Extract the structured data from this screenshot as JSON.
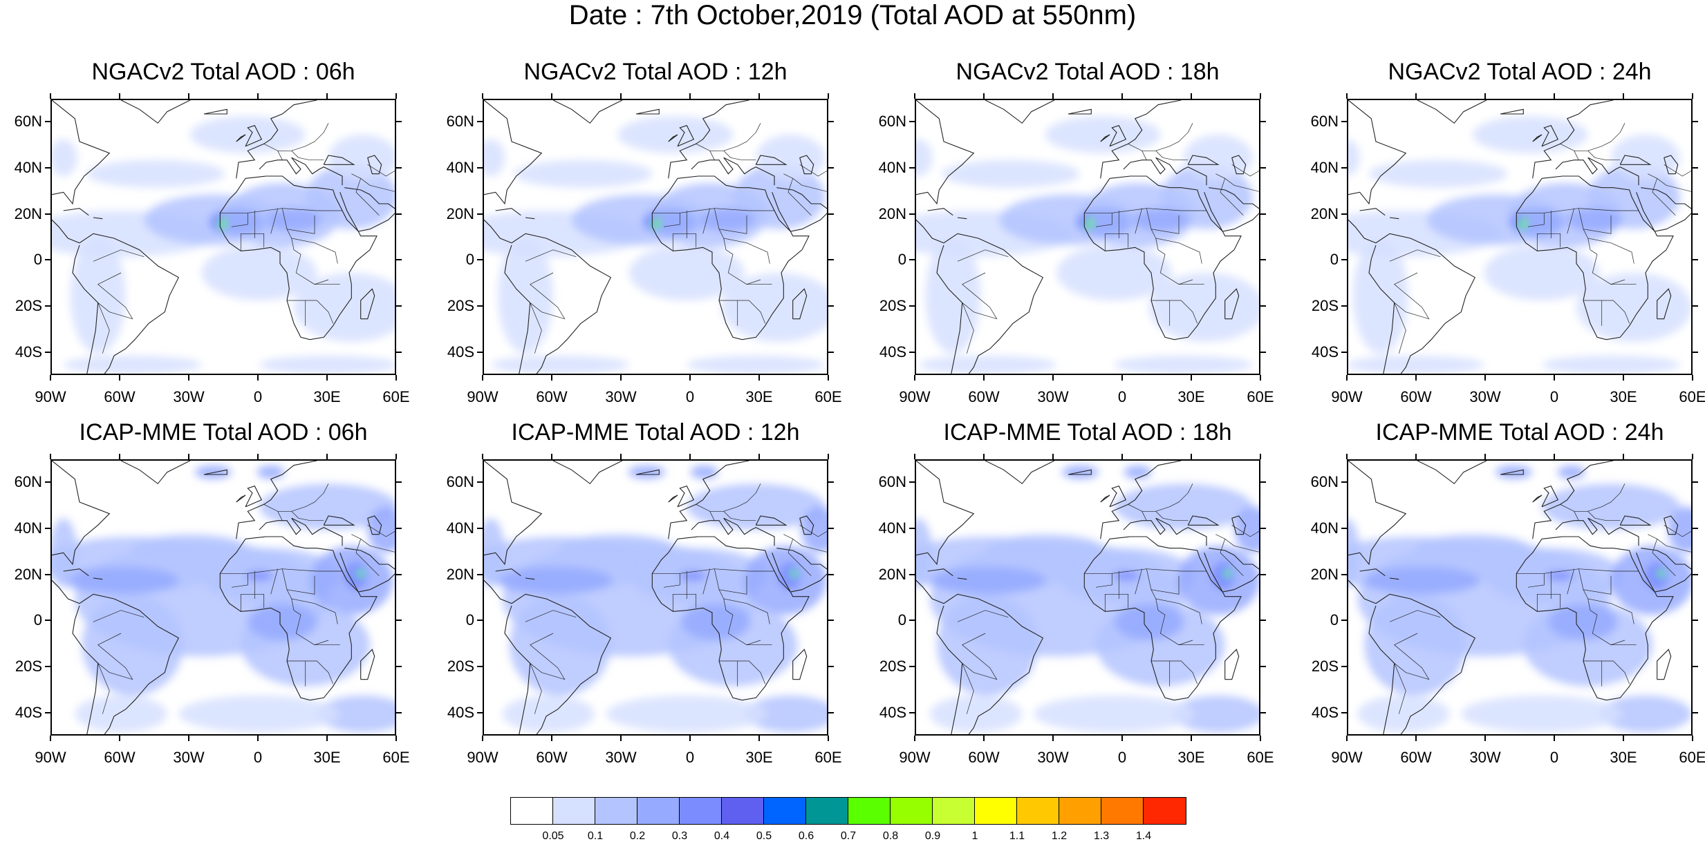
{
  "title": "Date : 7th October,2019 (Total AOD at 550nm)",
  "panels": [
    {
      "id": "ngac-06",
      "title": "NGACv2 Total AOD : 06h",
      "model": "ngac",
      "hour": 6
    },
    {
      "id": "ngac-12",
      "title": "NGACv2 Total AOD : 12h",
      "model": "ngac",
      "hour": 12
    },
    {
      "id": "ngac-18",
      "title": "NGACv2 Total AOD : 18h",
      "model": "ngac",
      "hour": 18
    },
    {
      "id": "ngac-24",
      "title": "NGACv2 Total AOD : 24h",
      "model": "ngac",
      "hour": 24
    },
    {
      "id": "icap-06",
      "title": "ICAP-MME Total AOD : 06h",
      "model": "icap",
      "hour": 6
    },
    {
      "id": "icap-12",
      "title": "ICAP-MME Total AOD : 12h",
      "model": "icap",
      "hour": 12
    },
    {
      "id": "icap-18",
      "title": "ICAP-MME Total AOD : 18h",
      "model": "icap",
      "hour": 18
    },
    {
      "id": "icap-24",
      "title": "ICAP-MME Total AOD : 24h",
      "model": "icap",
      "hour": 24
    }
  ],
  "lat_labels": [
    "60N",
    "40N",
    "20N",
    "0",
    "20S",
    "40S"
  ],
  "lon_labels": [
    "90W",
    "60W",
    "30W",
    "0",
    "30E",
    "60E"
  ],
  "colorbar": {
    "colors": [
      "#ffffff",
      "#d6e0ff",
      "#b4c4ff",
      "#96aaff",
      "#7b8cff",
      "#6060f0",
      "#0064ff",
      "#009696",
      "#5aff00",
      "#96ff00",
      "#c8ff32",
      "#ffff00",
      "#ffc800",
      "#ffa000",
      "#ff7800",
      "#ff2800"
    ],
    "labels": [
      "0.05",
      "0.1",
      "0.2",
      "0.3",
      "0.4",
      "0.5",
      "0.6",
      "0.7",
      "0.8",
      "0.9",
      "1",
      "1.1",
      "1.2",
      "1.3",
      "1.4"
    ]
  }
}
